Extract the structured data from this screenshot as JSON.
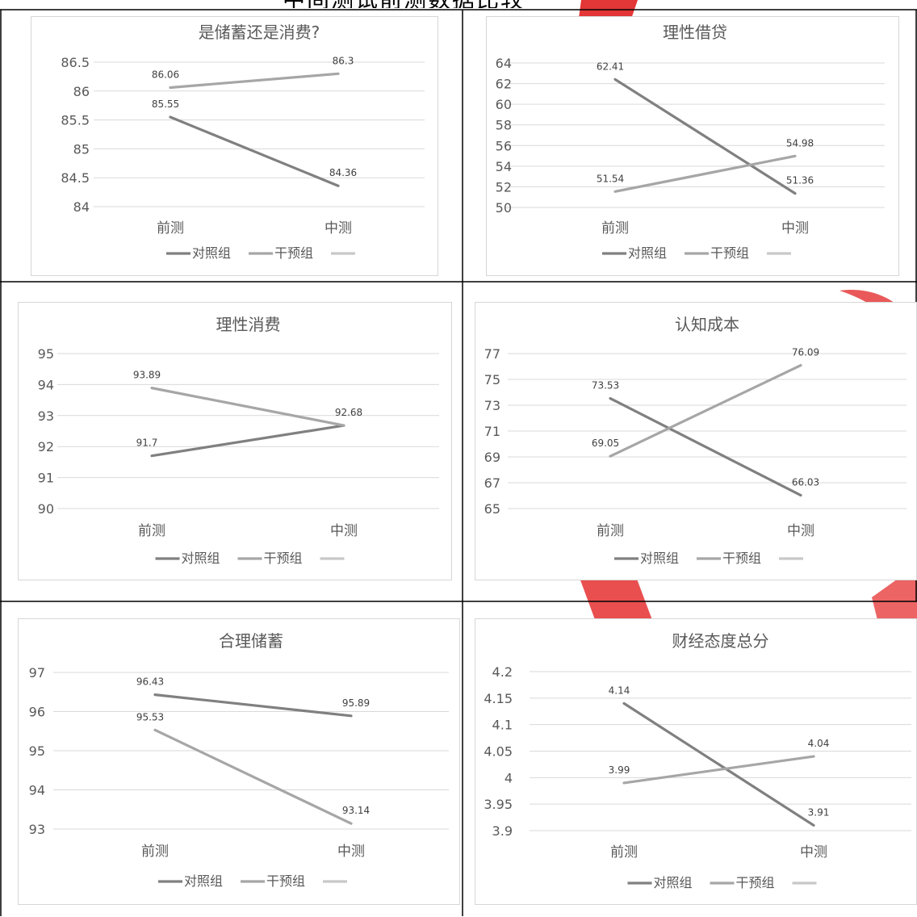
{
  "header_fragment": "中间测试前测数据比较",
  "colors": {
    "control": "#808080",
    "intervention": "#a6a6a6",
    "third": "#c8c8c8",
    "grid": "#d9d9d9",
    "watermark": "#e00000"
  },
  "legend": [
    "对照组",
    "干预组",
    ""
  ],
  "chart_data": [
    {
      "type": "line",
      "title": "是储蓄还是消费?",
      "categories": [
        "前测",
        "中测"
      ],
      "y_ticks": [
        "86.5",
        "86",
        "85.5",
        "85",
        "84.5",
        "84"
      ],
      "ylim": [
        84,
        86.5
      ],
      "series": [
        {
          "name": "对照组",
          "values": [
            85.55,
            84.36
          ],
          "labels": [
            "85.55",
            "84.36"
          ]
        },
        {
          "name": "干预组",
          "values": [
            86.06,
            86.3
          ],
          "labels": [
            "86.06",
            "86.3"
          ]
        }
      ]
    },
    {
      "type": "line",
      "title": "理性借贷",
      "categories": [
        "前测",
        "中测"
      ],
      "y_ticks": [
        "64",
        "62",
        "60",
        "58",
        "56",
        "54",
        "52",
        "50"
      ],
      "ylim": [
        50,
        64
      ],
      "series": [
        {
          "name": "对照组",
          "values": [
            62.41,
            51.36
          ],
          "labels": [
            "62.41",
            "51.36"
          ]
        },
        {
          "name": "干预组",
          "values": [
            51.54,
            54.98
          ],
          "labels": [
            "51.54",
            "54.98"
          ]
        }
      ]
    },
    {
      "type": "line",
      "title": "理性消费",
      "categories": [
        "前测",
        "中测"
      ],
      "y_ticks": [
        "95",
        "94",
        "93",
        "92",
        "91",
        "90"
      ],
      "ylim": [
        90,
        95
      ],
      "series": [
        {
          "name": "对照组",
          "values": [
            91.7,
            92.68
          ],
          "labels": [
            "91.7",
            "92.68"
          ]
        },
        {
          "name": "干预组",
          "values": [
            93.89,
            92.68
          ],
          "labels": [
            "93.89",
            ""
          ]
        }
      ]
    },
    {
      "type": "line",
      "title": "认知成本",
      "categories": [
        "前测",
        "中测"
      ],
      "y_ticks": [
        "77",
        "75",
        "73",
        "71",
        "69",
        "67",
        "65"
      ],
      "ylim": [
        65,
        77
      ],
      "series": [
        {
          "name": "对照组",
          "values": [
            73.53,
            66.03
          ],
          "labels": [
            "73.53",
            "66.03"
          ]
        },
        {
          "name": "干预组",
          "values": [
            69.05,
            76.09
          ],
          "labels": [
            "69.05",
            "76.09"
          ]
        }
      ]
    },
    {
      "type": "line",
      "title": "合理储蓄",
      "categories": [
        "前测",
        "中测"
      ],
      "y_ticks": [
        "97",
        "96",
        "95",
        "94",
        "93"
      ],
      "ylim": [
        93,
        97
      ],
      "series": [
        {
          "name": "对照组",
          "values": [
            96.43,
            95.89
          ],
          "labels": [
            "96.43",
            "95.89"
          ]
        },
        {
          "name": "干预组",
          "values": [
            95.53,
            93.14
          ],
          "labels": [
            "95.53",
            "93.14"
          ]
        }
      ]
    },
    {
      "type": "line",
      "title": "财经态度总分",
      "categories": [
        "前测",
        "中测"
      ],
      "y_ticks": [
        "4.2",
        "4.15",
        "4.1",
        "4.05",
        "4",
        "3.95",
        "3.9"
      ],
      "ylim": [
        3.9,
        4.2
      ],
      "series": [
        {
          "name": "对照组",
          "values": [
            4.14,
            3.91
          ],
          "labels": [
            "4.14",
            "3.91"
          ]
        },
        {
          "name": "干预组",
          "values": [
            3.99,
            4.04
          ],
          "labels": [
            "3.99",
            "4.04"
          ]
        }
      ]
    }
  ]
}
